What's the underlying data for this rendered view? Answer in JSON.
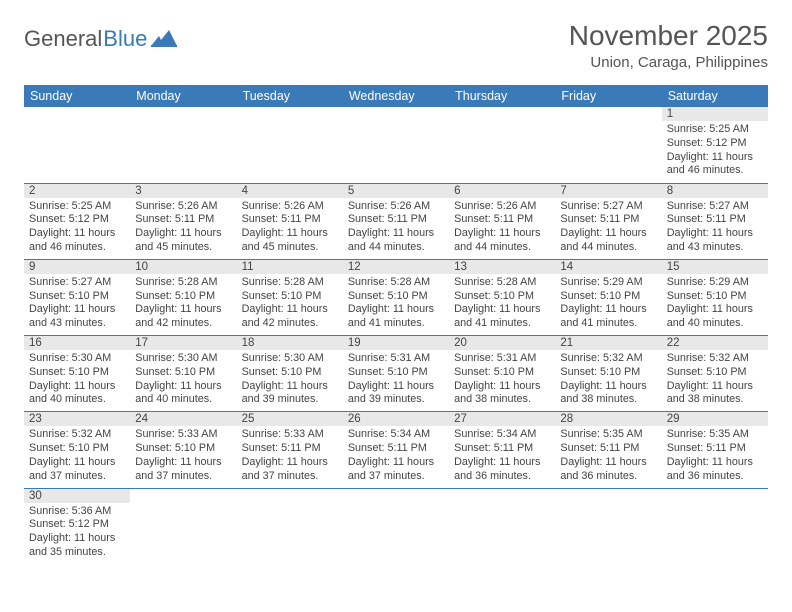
{
  "logo": {
    "text1": "General",
    "text2": "Blue"
  },
  "title": {
    "month": "November 2025",
    "location": "Union, Caraga, Philippines"
  },
  "colors": {
    "header_bg": "#3b7ab8",
    "header_fg": "#ffffff",
    "daynum_bg": "#e8e8e8",
    "rule": "#3b7ab8"
  },
  "day_headers": [
    "Sunday",
    "Monday",
    "Tuesday",
    "Wednesday",
    "Thursday",
    "Friday",
    "Saturday"
  ],
  "weeks": [
    [
      null,
      null,
      null,
      null,
      null,
      null,
      {
        "n": "1",
        "sunrise": "Sunrise: 5:25 AM",
        "sunset": "Sunset: 5:12 PM",
        "dl1": "Daylight: 11 hours",
        "dl2": "and 46 minutes."
      }
    ],
    [
      {
        "n": "2",
        "sunrise": "Sunrise: 5:25 AM",
        "sunset": "Sunset: 5:12 PM",
        "dl1": "Daylight: 11 hours",
        "dl2": "and 46 minutes."
      },
      {
        "n": "3",
        "sunrise": "Sunrise: 5:26 AM",
        "sunset": "Sunset: 5:11 PM",
        "dl1": "Daylight: 11 hours",
        "dl2": "and 45 minutes."
      },
      {
        "n": "4",
        "sunrise": "Sunrise: 5:26 AM",
        "sunset": "Sunset: 5:11 PM",
        "dl1": "Daylight: 11 hours",
        "dl2": "and 45 minutes."
      },
      {
        "n": "5",
        "sunrise": "Sunrise: 5:26 AM",
        "sunset": "Sunset: 5:11 PM",
        "dl1": "Daylight: 11 hours",
        "dl2": "and 44 minutes."
      },
      {
        "n": "6",
        "sunrise": "Sunrise: 5:26 AM",
        "sunset": "Sunset: 5:11 PM",
        "dl1": "Daylight: 11 hours",
        "dl2": "and 44 minutes."
      },
      {
        "n": "7",
        "sunrise": "Sunrise: 5:27 AM",
        "sunset": "Sunset: 5:11 PM",
        "dl1": "Daylight: 11 hours",
        "dl2": "and 44 minutes."
      },
      {
        "n": "8",
        "sunrise": "Sunrise: 5:27 AM",
        "sunset": "Sunset: 5:11 PM",
        "dl1": "Daylight: 11 hours",
        "dl2": "and 43 minutes."
      }
    ],
    [
      {
        "n": "9",
        "sunrise": "Sunrise: 5:27 AM",
        "sunset": "Sunset: 5:10 PM",
        "dl1": "Daylight: 11 hours",
        "dl2": "and 43 minutes."
      },
      {
        "n": "10",
        "sunrise": "Sunrise: 5:28 AM",
        "sunset": "Sunset: 5:10 PM",
        "dl1": "Daylight: 11 hours",
        "dl2": "and 42 minutes."
      },
      {
        "n": "11",
        "sunrise": "Sunrise: 5:28 AM",
        "sunset": "Sunset: 5:10 PM",
        "dl1": "Daylight: 11 hours",
        "dl2": "and 42 minutes."
      },
      {
        "n": "12",
        "sunrise": "Sunrise: 5:28 AM",
        "sunset": "Sunset: 5:10 PM",
        "dl1": "Daylight: 11 hours",
        "dl2": "and 41 minutes."
      },
      {
        "n": "13",
        "sunrise": "Sunrise: 5:28 AM",
        "sunset": "Sunset: 5:10 PM",
        "dl1": "Daylight: 11 hours",
        "dl2": "and 41 minutes."
      },
      {
        "n": "14",
        "sunrise": "Sunrise: 5:29 AM",
        "sunset": "Sunset: 5:10 PM",
        "dl1": "Daylight: 11 hours",
        "dl2": "and 41 minutes."
      },
      {
        "n": "15",
        "sunrise": "Sunrise: 5:29 AM",
        "sunset": "Sunset: 5:10 PM",
        "dl1": "Daylight: 11 hours",
        "dl2": "and 40 minutes."
      }
    ],
    [
      {
        "n": "16",
        "sunrise": "Sunrise: 5:30 AM",
        "sunset": "Sunset: 5:10 PM",
        "dl1": "Daylight: 11 hours",
        "dl2": "and 40 minutes."
      },
      {
        "n": "17",
        "sunrise": "Sunrise: 5:30 AM",
        "sunset": "Sunset: 5:10 PM",
        "dl1": "Daylight: 11 hours",
        "dl2": "and 40 minutes."
      },
      {
        "n": "18",
        "sunrise": "Sunrise: 5:30 AM",
        "sunset": "Sunset: 5:10 PM",
        "dl1": "Daylight: 11 hours",
        "dl2": "and 39 minutes."
      },
      {
        "n": "19",
        "sunrise": "Sunrise: 5:31 AM",
        "sunset": "Sunset: 5:10 PM",
        "dl1": "Daylight: 11 hours",
        "dl2": "and 39 minutes."
      },
      {
        "n": "20",
        "sunrise": "Sunrise: 5:31 AM",
        "sunset": "Sunset: 5:10 PM",
        "dl1": "Daylight: 11 hours",
        "dl2": "and 38 minutes."
      },
      {
        "n": "21",
        "sunrise": "Sunrise: 5:32 AM",
        "sunset": "Sunset: 5:10 PM",
        "dl1": "Daylight: 11 hours",
        "dl2": "and 38 minutes."
      },
      {
        "n": "22",
        "sunrise": "Sunrise: 5:32 AM",
        "sunset": "Sunset: 5:10 PM",
        "dl1": "Daylight: 11 hours",
        "dl2": "and 38 minutes."
      }
    ],
    [
      {
        "n": "23",
        "sunrise": "Sunrise: 5:32 AM",
        "sunset": "Sunset: 5:10 PM",
        "dl1": "Daylight: 11 hours",
        "dl2": "and 37 minutes."
      },
      {
        "n": "24",
        "sunrise": "Sunrise: 5:33 AM",
        "sunset": "Sunset: 5:10 PM",
        "dl1": "Daylight: 11 hours",
        "dl2": "and 37 minutes."
      },
      {
        "n": "25",
        "sunrise": "Sunrise: 5:33 AM",
        "sunset": "Sunset: 5:11 PM",
        "dl1": "Daylight: 11 hours",
        "dl2": "and 37 minutes."
      },
      {
        "n": "26",
        "sunrise": "Sunrise: 5:34 AM",
        "sunset": "Sunset: 5:11 PM",
        "dl1": "Daylight: 11 hours",
        "dl2": "and 37 minutes."
      },
      {
        "n": "27",
        "sunrise": "Sunrise: 5:34 AM",
        "sunset": "Sunset: 5:11 PM",
        "dl1": "Daylight: 11 hours",
        "dl2": "and 36 minutes."
      },
      {
        "n": "28",
        "sunrise": "Sunrise: 5:35 AM",
        "sunset": "Sunset: 5:11 PM",
        "dl1": "Daylight: 11 hours",
        "dl2": "and 36 minutes."
      },
      {
        "n": "29",
        "sunrise": "Sunrise: 5:35 AM",
        "sunset": "Sunset: 5:11 PM",
        "dl1": "Daylight: 11 hours",
        "dl2": "and 36 minutes."
      }
    ],
    [
      {
        "n": "30",
        "sunrise": "Sunrise: 5:36 AM",
        "sunset": "Sunset: 5:12 PM",
        "dl1": "Daylight: 11 hours",
        "dl2": "and 35 minutes."
      },
      null,
      null,
      null,
      null,
      null,
      null
    ]
  ]
}
